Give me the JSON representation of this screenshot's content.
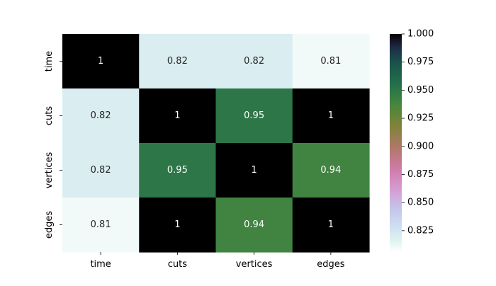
{
  "chart_data": {
    "type": "heatmap",
    "title": "",
    "xlabel": "",
    "ylabel": "",
    "x_categories": [
      "time",
      "cuts",
      "vertices",
      "edges"
    ],
    "y_categories": [
      "time",
      "cuts",
      "vertices",
      "edges"
    ],
    "values": [
      [
        1.0,
        0.82,
        0.82,
        0.81
      ],
      [
        0.82,
        1.0,
        0.95,
        1.0
      ],
      [
        0.82,
        0.95,
        1.0,
        0.94
      ],
      [
        0.81,
        1.0,
        0.94,
        1.0
      ]
    ],
    "annotations": [
      [
        "1",
        "0.82",
        "0.82",
        "0.81"
      ],
      [
        "0.82",
        "1",
        "0.95",
        "1"
      ],
      [
        "0.82",
        "0.95",
        "1",
        "0.94"
      ],
      [
        "0.81",
        "1",
        "0.94",
        "1"
      ]
    ],
    "colormap": "cubehelix_r",
    "color_range": [
      0.806,
      1.0
    ],
    "colorbar": {
      "ticks": [
        0.825,
        0.85,
        0.875,
        0.9,
        0.925,
        0.95,
        0.975,
        1.0
      ],
      "tick_labels": [
        "0.825",
        "0.850",
        "0.875",
        "0.900",
        "0.925",
        "0.950",
        "0.975",
        "1.000"
      ],
      "position": "right"
    }
  }
}
